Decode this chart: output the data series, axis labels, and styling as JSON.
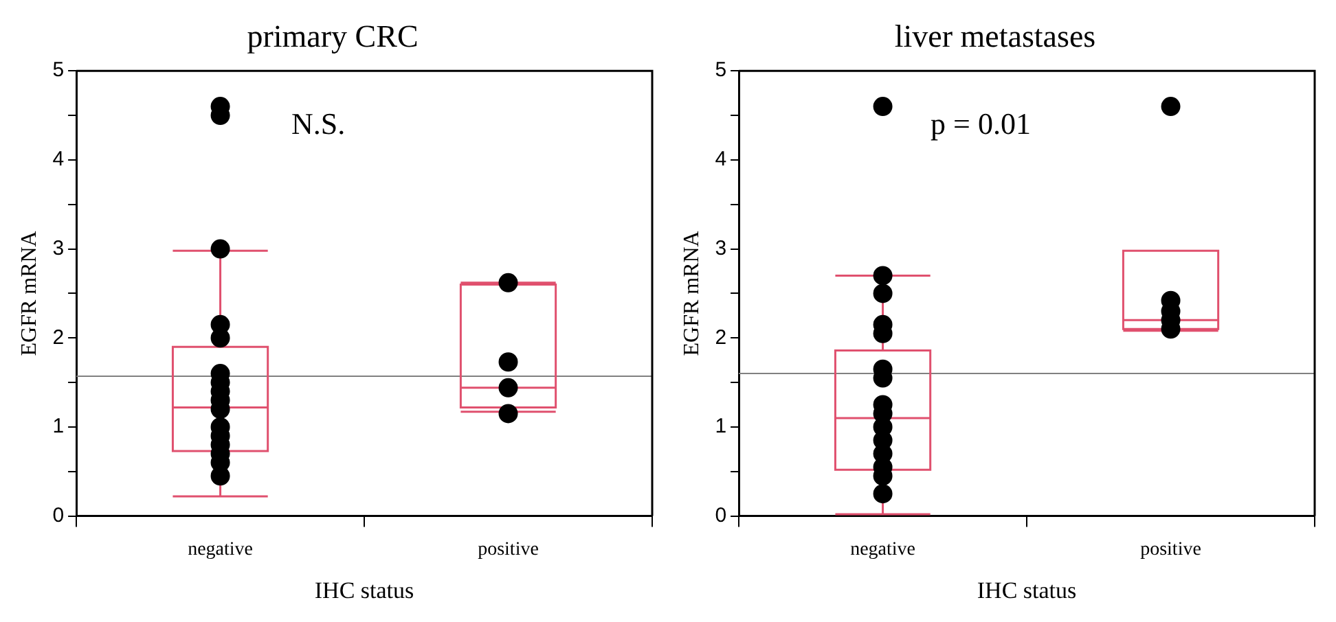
{
  "chart_data": [
    {
      "type": "box",
      "title": "primary CRC",
      "xlabel": "IHC status",
      "ylabel": "EGFR mRNA",
      "categories": [
        "negative",
        "positive"
      ],
      "ylim": [
        0,
        5
      ],
      "yticks": [
        0,
        {
          "value": 0.5,
          "label": null
        },
        1,
        {
          "value": 1.5,
          "label": null
        },
        2,
        {
          "value": 2.5,
          "label": null
        },
        3,
        {
          "value": 3.5,
          "label": null
        },
        4,
        {
          "value": 4.5,
          "label": null
        },
        5
      ],
      "grid": false,
      "legend": false,
      "marker": "circle",
      "annotations": [
        "N.S."
      ],
      "ref_lines": [
        {
          "axis": "y",
          "value": 1.57,
          "color": "#808080"
        }
      ],
      "series": [
        {
          "color": "#e0506e",
          "boxes": [
            {
              "low": 0.22,
              "q1": 0.73,
              "median": 1.22,
              "q3": 1.9,
              "high": 2.98
            },
            {
              "low": 1.17,
              "q1": 1.22,
              "median": 1.44,
              "q3": 2.6,
              "high": 2.62
            }
          ]
        },
        {
          "type": "scatter",
          "color": "#000000",
          "x": [
            "negative",
            "negative",
            "negative",
            "negative",
            "negative",
            "negative",
            "negative",
            "negative",
            "negative",
            "negative",
            "negative",
            "negative",
            "negative",
            "negative",
            "negative",
            "negative",
            "positive",
            "positive",
            "positive",
            "positive"
          ],
          "values": [
            4.6,
            4.5,
            3.0,
            2.15,
            2.0,
            1.6,
            1.5,
            1.4,
            1.3,
            1.2,
            1.0,
            0.9,
            0.8,
            0.7,
            0.6,
            0.45,
            2.62,
            1.73,
            1.44,
            1.15
          ]
        }
      ]
    },
    {
      "type": "box",
      "title": "liver metastases",
      "xlabel": "IHC status",
      "ylabel": "EGFR mRNA",
      "categories": [
        "negative",
        "positive"
      ],
      "ylim": [
        0,
        5
      ],
      "yticks": [
        0,
        {
          "value": 0.5,
          "label": null
        },
        1,
        {
          "value": 1.5,
          "label": null
        },
        2,
        {
          "value": 2.5,
          "label": null
        },
        3,
        {
          "value": 3.5,
          "label": null
        },
        4,
        {
          "value": 4.5,
          "label": null
        },
        5
      ],
      "grid": false,
      "legend": false,
      "marker": "circle",
      "annotations": [
        "p = 0.01"
      ],
      "ref_lines": [
        {
          "axis": "y",
          "value": 1.6,
          "color": "#808080"
        }
      ],
      "series": [
        {
          "color": "#e0506e",
          "boxes": [
            {
              "low": 0.02,
              "q1": 0.52,
              "median": 1.1,
              "q3": 1.86,
              "high": 2.7
            },
            {
              "low": 2.08,
              "q1": 2.1,
              "median": 2.2,
              "q3": 2.98,
              "high": 2.98
            }
          ]
        },
        {
          "type": "scatter",
          "color": "#000000",
          "x": [
            "negative",
            "negative",
            "negative",
            "negative",
            "negative",
            "negative",
            "negative",
            "negative",
            "negative",
            "negative",
            "negative",
            "negative",
            "negative",
            "negative",
            "negative",
            "positive",
            "positive",
            "positive",
            "positive",
            "positive"
          ],
          "values": [
            4.6,
            2.7,
            2.5,
            2.15,
            2.05,
            1.65,
            1.55,
            1.25,
            1.15,
            1.0,
            0.85,
            0.7,
            0.55,
            0.45,
            0.25,
            4.6,
            2.42,
            2.3,
            2.2,
            2.1
          ]
        }
      ]
    }
  ]
}
